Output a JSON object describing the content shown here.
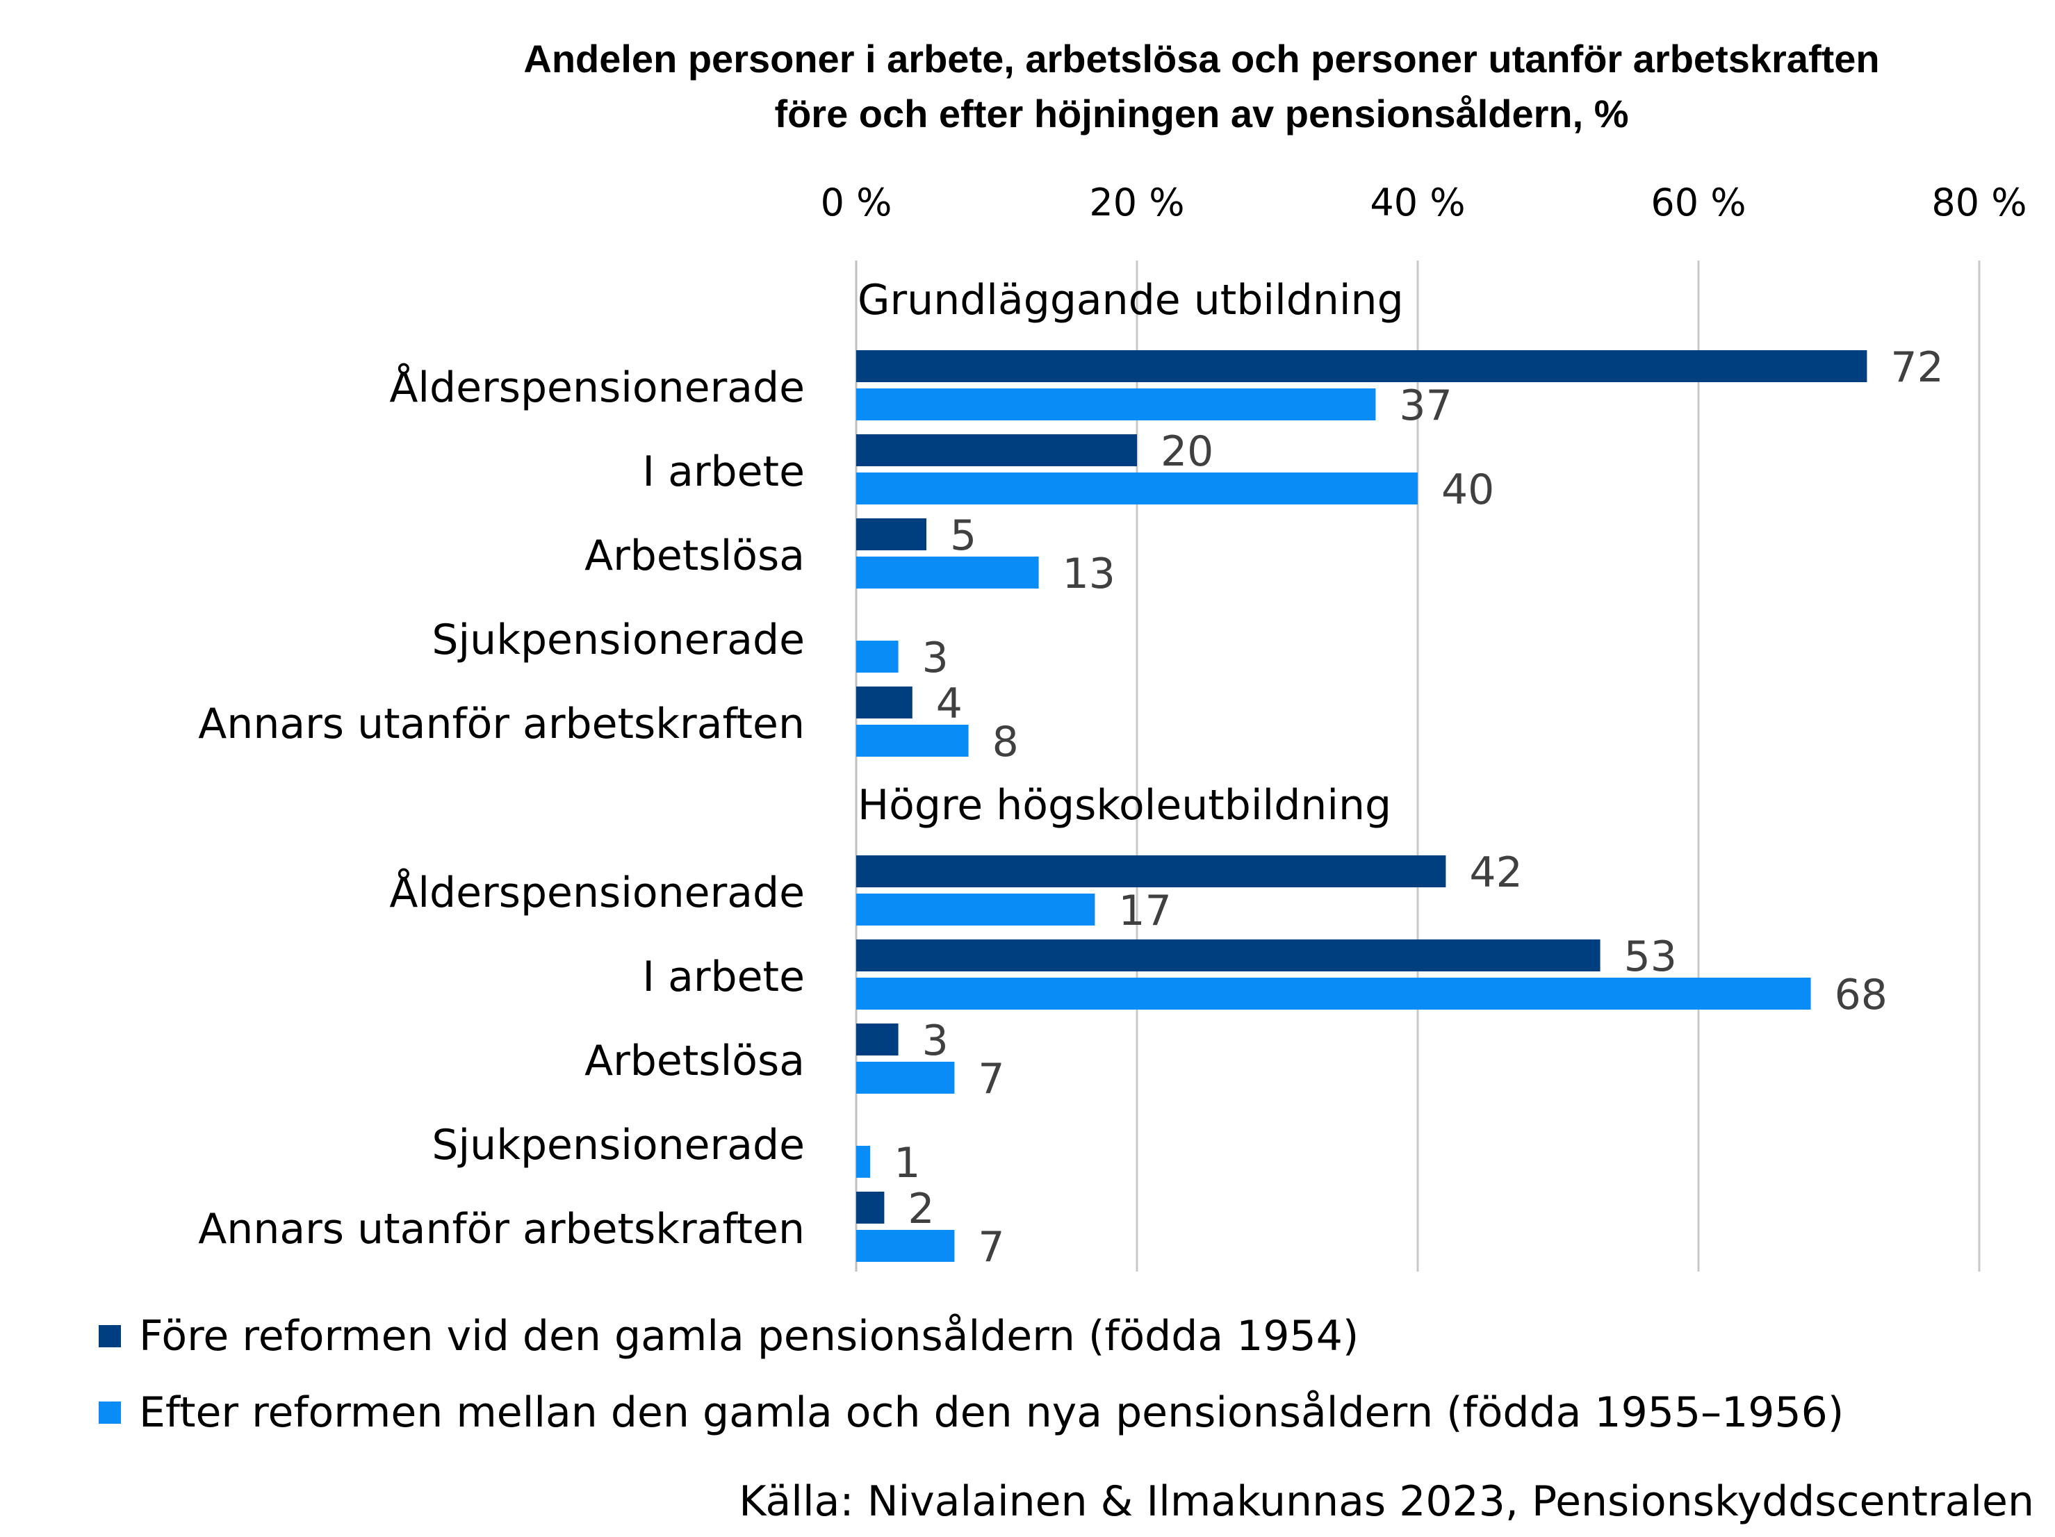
{
  "chart_data": {
    "type": "bar",
    "orientation": "horizontal",
    "title": "Andelen personer i arbete, arbetslösa och personer utanför arbetskraften",
    "subtitle": "före och efter höjningen av pensionsåldern, %",
    "xlim": [
      0,
      80
    ],
    "xticks": [
      0,
      20,
      40,
      60,
      80
    ],
    "xtick_labels": [
      "0 %",
      "20 %",
      "40 %",
      "60 %",
      "80 %"
    ],
    "grid": true,
    "legend_position": "bottom",
    "groups": [
      {
        "name": "Grundläggande utbildning",
        "categories": [
          "Ålderspensionerade",
          "I arbete",
          "Arbetslösa",
          "Sjukpensionerade",
          "Annars utanför arbetskraften"
        ],
        "series": [
          {
            "name": "Före reformen vid den gamla pensionsåldern (födda 1954)",
            "values": [
              72,
              20,
              5,
              null,
              4
            ]
          },
          {
            "name": "Efter reformen mellan den gamla och den nya pensionsåldern (födda 1955–1956)",
            "values": [
              37,
              40,
              13,
              3,
              8
            ]
          }
        ]
      },
      {
        "name": "Högre högskoleutbildning",
        "categories": [
          "Ålderspensionerade",
          "I arbete",
          "Arbetslösa",
          "Sjukpensionerade",
          "Annars utanför arbetskraften"
        ],
        "series": [
          {
            "name": "Före reformen vid den gamla pensionsåldern (födda 1954)",
            "values": [
              42,
              53,
              3,
              null,
              2
            ]
          },
          {
            "name": "Efter reformen mellan den gamla och den nya pensionsåldern (födda 1955–1956)",
            "values": [
              17,
              68,
              7,
              1,
              7
            ]
          }
        ]
      }
    ],
    "colors": [
      "#003f7f",
      "#0a8cf7"
    ]
  },
  "source": "Källa: Nivalainen & Ilmakunnas 2023, Pensionskyddscentralen"
}
